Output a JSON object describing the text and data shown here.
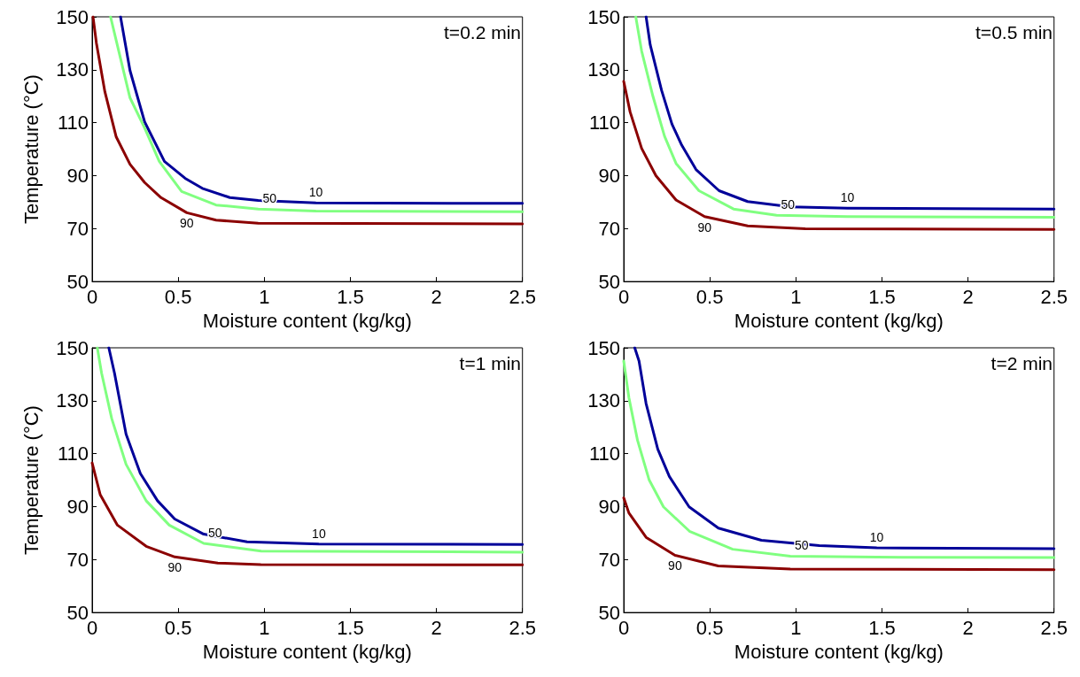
{
  "chart_data": [
    {
      "type": "line",
      "ylabel": "Temperature (°C)",
      "xlabel": "Moisture content (kg/kg)",
      "annotations": [
        "t=0.2 min"
      ],
      "xlim": [
        0,
        2.5
      ],
      "xticks": [
        0,
        0.5,
        1,
        1.5,
        2,
        2.5
      ],
      "ylim": [
        50,
        150
      ],
      "yticks": [
        50,
        70,
        90,
        110,
        130,
        150
      ],
      "grid": false,
      "legend": false,
      "series": [
        {
          "name": "10",
          "color": "#000099",
          "x": [
            0.165,
            0.22,
            0.305,
            0.42,
            0.54,
            0.64,
            0.8,
            0.965,
            1.3,
            2.5
          ],
          "values": [
            150,
            129.7,
            110.3,
            95.4,
            89,
            85.2,
            81.7,
            80.6,
            79.7,
            79.5
          ]
        },
        {
          "name": "50",
          "color": "#80ff80",
          "x": [
            0.107,
            0.14,
            0.22,
            0.305,
            0.39,
            0.52,
            0.72,
            0.965,
            1.3,
            2.5
          ],
          "values": [
            150,
            141,
            119.4,
            108,
            95.4,
            84,
            78.9,
            77.4,
            76.6,
            76.4
          ]
        },
        {
          "name": "90",
          "color": "#8b0000",
          "x": [
            0.005,
            0.025,
            0.074,
            0.14,
            0.22,
            0.305,
            0.4,
            0.55,
            0.72,
            0.965,
            2.5
          ],
          "values": [
            150,
            140,
            121.7,
            104.6,
            94.3,
            87.4,
            81.7,
            76,
            73.2,
            72,
            71.8
          ]
        }
      ]
    },
    {
      "type": "line",
      "xlabel": "Moisture content (kg/kg)",
      "annotations": [
        "t=0.5 min"
      ],
      "xlim": [
        0,
        2.5
      ],
      "xticks": [
        0,
        0.5,
        1,
        1.5,
        2,
        2.5
      ],
      "ylim": [
        50,
        150
      ],
      "yticks": [
        50,
        70,
        90,
        110,
        130,
        150
      ],
      "grid": false,
      "legend": false,
      "series": [
        {
          "name": "10",
          "color": "#000099",
          "x": [
            0.13,
            0.154,
            0.22,
            0.28,
            0.337,
            0.42,
            0.554,
            0.72,
            0.97,
            1.3,
            2.5
          ],
          "values": [
            150,
            139.4,
            122.2,
            109.5,
            101.5,
            92.3,
            84.3,
            80.2,
            78.2,
            77.7,
            77.4
          ]
        },
        {
          "name": "50",
          "color": "#80ff80",
          "x": [
            0.07,
            0.104,
            0.17,
            0.237,
            0.304,
            0.437,
            0.638,
            0.888,
            1.3,
            2.5
          ],
          "values": [
            150,
            137.1,
            119.9,
            104.9,
            94.6,
            84.3,
            77.4,
            75,
            74.5,
            74.3
          ]
        },
        {
          "name": "90",
          "color": "#8b0000",
          "x": [
            0,
            0.037,
            0.104,
            0.187,
            0.304,
            0.47,
            0.72,
            1.055,
            2.5
          ],
          "values": [
            125.6,
            114.1,
            100.3,
            90,
            80.8,
            74.5,
            71,
            69.9,
            69.7
          ]
        }
      ]
    },
    {
      "type": "line",
      "ylabel": "Temperature (°C)",
      "xlabel": "Moisture content (kg/kg)",
      "annotations": [
        "t=1 min"
      ],
      "xlim": [
        0,
        2.5
      ],
      "xticks": [
        0,
        0.5,
        1,
        1.5,
        2,
        2.5
      ],
      "ylim": [
        50,
        150
      ],
      "yticks": [
        50,
        70,
        90,
        110,
        130,
        150
      ],
      "grid": false,
      "legend": false,
      "series": [
        {
          "name": "10",
          "color": "#000099",
          "x": [
            0.097,
            0.13,
            0.197,
            0.28,
            0.38,
            0.48,
            0.648,
            0.9,
            1.317,
            2.5
          ],
          "values": [
            150,
            140.4,
            117.4,
            102.5,
            92.2,
            85.3,
            79.6,
            76.7,
            75.9,
            75.7
          ]
        },
        {
          "name": "50",
          "color": "#80ff80",
          "x": [
            0.03,
            0.055,
            0.114,
            0.197,
            0.314,
            0.448,
            0.648,
            0.982,
            2.5
          ],
          "values": [
            150,
            140.4,
            123.2,
            106,
            92.2,
            83,
            76.1,
            73.2,
            72.8
          ]
        },
        {
          "name": "90",
          "color": "#8b0000",
          "x": [
            0,
            0.047,
            0.147,
            0.314,
            0.48,
            0.73,
            0.98,
            2.5
          ],
          "values": [
            106.5,
            94.5,
            83,
            75,
            71,
            68.7,
            68.1,
            68
          ]
        }
      ]
    },
    {
      "type": "line",
      "xlabel": "Moisture content (kg/kg)",
      "annotations": [
        "t=2 min"
      ],
      "xlim": [
        0,
        2.5
      ],
      "xticks": [
        0,
        0.5,
        1,
        1.5,
        2,
        2.5
      ],
      "ylim": [
        50,
        150
      ],
      "yticks": [
        50,
        70,
        90,
        110,
        130,
        150
      ],
      "grid": false,
      "legend": false,
      "series": [
        {
          "name": "10",
          "color": "#000099",
          "x": [
            0.064,
            0.089,
            0.13,
            0.198,
            0.265,
            0.38,
            0.55,
            0.8,
            1.136,
            1.47,
            2.5
          ],
          "values": [
            150,
            145,
            128.9,
            111.7,
            101.4,
            89.9,
            81.9,
            77.3,
            75.3,
            74.4,
            74.1
          ]
        },
        {
          "name": "50",
          "color": "#80ff80",
          "x": [
            0,
            0.03,
            0.08,
            0.147,
            0.231,
            0.382,
            0.633,
            0.968,
            1.47,
            2.5
          ],
          "values": [
            145,
            131.2,
            115.1,
            100.2,
            89.9,
            80.7,
            73.9,
            71.3,
            70.9,
            70.8
          ]
        },
        {
          "name": "90",
          "color": "#8b0000",
          "x": [
            0,
            0.03,
            0.13,
            0.298,
            0.549,
            0.968,
            2.5
          ],
          "values": [
            93.3,
            87.6,
            78.4,
            71.6,
            67.6,
            66.4,
            66.2
          ]
        }
      ]
    }
  ]
}
